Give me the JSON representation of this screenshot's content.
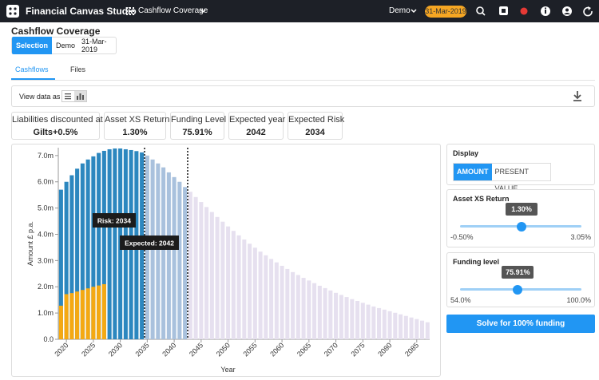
{
  "app": {
    "title": "Financial Canvas Studio",
    "page": "Cashflow Coverage",
    "user": "Demo",
    "date": "31-Mar-2019"
  },
  "header": {
    "title": "Cashflow Coverage",
    "chips": [
      "Selection",
      "Demo",
      "31-Mar-2019"
    ]
  },
  "tabs": [
    "Cashflows",
    "Files"
  ],
  "toolbar": {
    "label": "View data as"
  },
  "cards": [
    {
      "label": "Liabilities discounted at",
      "value": "Gilts+0.5%"
    },
    {
      "label": "Asset XS Return",
      "value": "1.30%"
    },
    {
      "label": "Funding Level",
      "value": "75.91%"
    },
    {
      "label": "Expected year",
      "value": "2042"
    },
    {
      "label": "Expected Risk",
      "value": "2034"
    }
  ],
  "display": {
    "label": "Display",
    "options": [
      "AMOUNT",
      "PRESENT VALUE"
    ]
  },
  "sliders": [
    {
      "label": "Asset XS Return",
      "value": 1.3,
      "value_label": "1.30%",
      "min": -0.5,
      "min_label": "-0.50%",
      "max": 3.05,
      "max_label": "3.05%"
    },
    {
      "label": "Funding level",
      "value": 75.91,
      "value_label": "75.91%",
      "min": 54,
      "min_label": "54.0%",
      "max": 100,
      "max_label": "100.0%"
    }
  ],
  "button": "Solve for 100% funding",
  "chart_data": {
    "type": "bar",
    "xlabel": "Year",
    "ylabel": "Amount £ p.a.",
    "x": [
      2019,
      2020,
      2021,
      2022,
      2023,
      2024,
      2025,
      2026,
      2027,
      2028,
      2029,
      2030,
      2031,
      2032,
      2033,
      2034,
      2035,
      2036,
      2037,
      2038,
      2039,
      2040,
      2041,
      2042,
      2043,
      2044,
      2045,
      2046,
      2047,
      2048,
      2049,
      2050,
      2051,
      2052,
      2053,
      2054,
      2055,
      2056,
      2057,
      2058,
      2059,
      2060,
      2061,
      2062,
      2063,
      2064,
      2065,
      2066,
      2067,
      2068,
      2069,
      2070,
      2071,
      2072,
      2073,
      2074,
      2075,
      2076,
      2077,
      2078,
      2079,
      2080,
      2081,
      2082,
      2083,
      2084,
      2085,
      2086,
      2087
    ],
    "series": [
      {
        "values": [
          5.7,
          6.0,
          6.25,
          6.5,
          6.7,
          6.85,
          6.97,
          7.1,
          7.18,
          7.24,
          7.27,
          7.27,
          7.24,
          7.21,
          7.17,
          7.12,
          7.0,
          6.85,
          6.7,
          6.55,
          6.36,
          6.18,
          6.0,
          5.8,
          5.62,
          5.42,
          5.23,
          5.04,
          4.85,
          4.66,
          4.48,
          4.3,
          4.13,
          3.96,
          3.8,
          3.64,
          3.49,
          3.34,
          3.2,
          3.06,
          2.93,
          2.8,
          2.68,
          2.56,
          2.45,
          2.34,
          2.24,
          2.14,
          2.04,
          1.95,
          1.86,
          1.77,
          1.69,
          1.61,
          1.53,
          1.46,
          1.39,
          1.32,
          1.25,
          1.19,
          1.13,
          1.07,
          1.01,
          0.95,
          0.89,
          0.83,
          0.77,
          0.71,
          0.65
        ]
      },
      {
        "color": "#f5a912",
        "values": [
          1.28,
          1.72,
          1.76,
          1.82,
          1.88,
          1.94,
          2.0,
          2.05,
          2.1,
          null,
          null,
          null,
          null,
          null,
          null,
          null,
          null,
          null,
          null,
          null,
          null,
          null,
          null,
          null,
          null,
          null,
          null,
          null,
          null,
          null,
          null,
          null,
          null,
          null,
          null,
          null,
          null,
          null,
          null,
          null,
          null,
          null,
          null,
          null,
          null,
          null,
          null,
          null,
          null,
          null,
          null,
          null,
          null,
          null,
          null,
          null,
          null,
          null,
          null,
          null,
          null,
          null,
          null,
          null,
          null,
          null,
          null,
          null,
          null
        ]
      }
    ],
    "phase_colors": [
      "#2c87bf",
      "#a9c1dd",
      "#e6e0ef"
    ],
    "annotations": [
      {
        "text": "Risk: 2034",
        "x": 2034
      },
      {
        "text": "Expected: 2042",
        "x": 2042
      }
    ],
    "xlim": [
      2018.5,
      2087.4
    ],
    "xticks": [
      2020,
      2025,
      2030,
      2035,
      2040,
      2045,
      2050,
      2055,
      2060,
      2065,
      2070,
      2075,
      2080,
      2085
    ],
    "ylim": [
      0,
      7.3
    ],
    "yticks": [
      {
        "value": 0,
        "label": "0.0"
      },
      {
        "value": 1,
        "label": "1.0m"
      },
      {
        "value": 2,
        "label": "2.0m"
      },
      {
        "value": 3,
        "label": "3.0m"
      },
      {
        "value": 4,
        "label": "4.0m"
      },
      {
        "value": 5,
        "label": "5.0m"
      },
      {
        "value": 6,
        "label": "6.0m"
      },
      {
        "value": 7,
        "label": "7.0m"
      }
    ]
  }
}
